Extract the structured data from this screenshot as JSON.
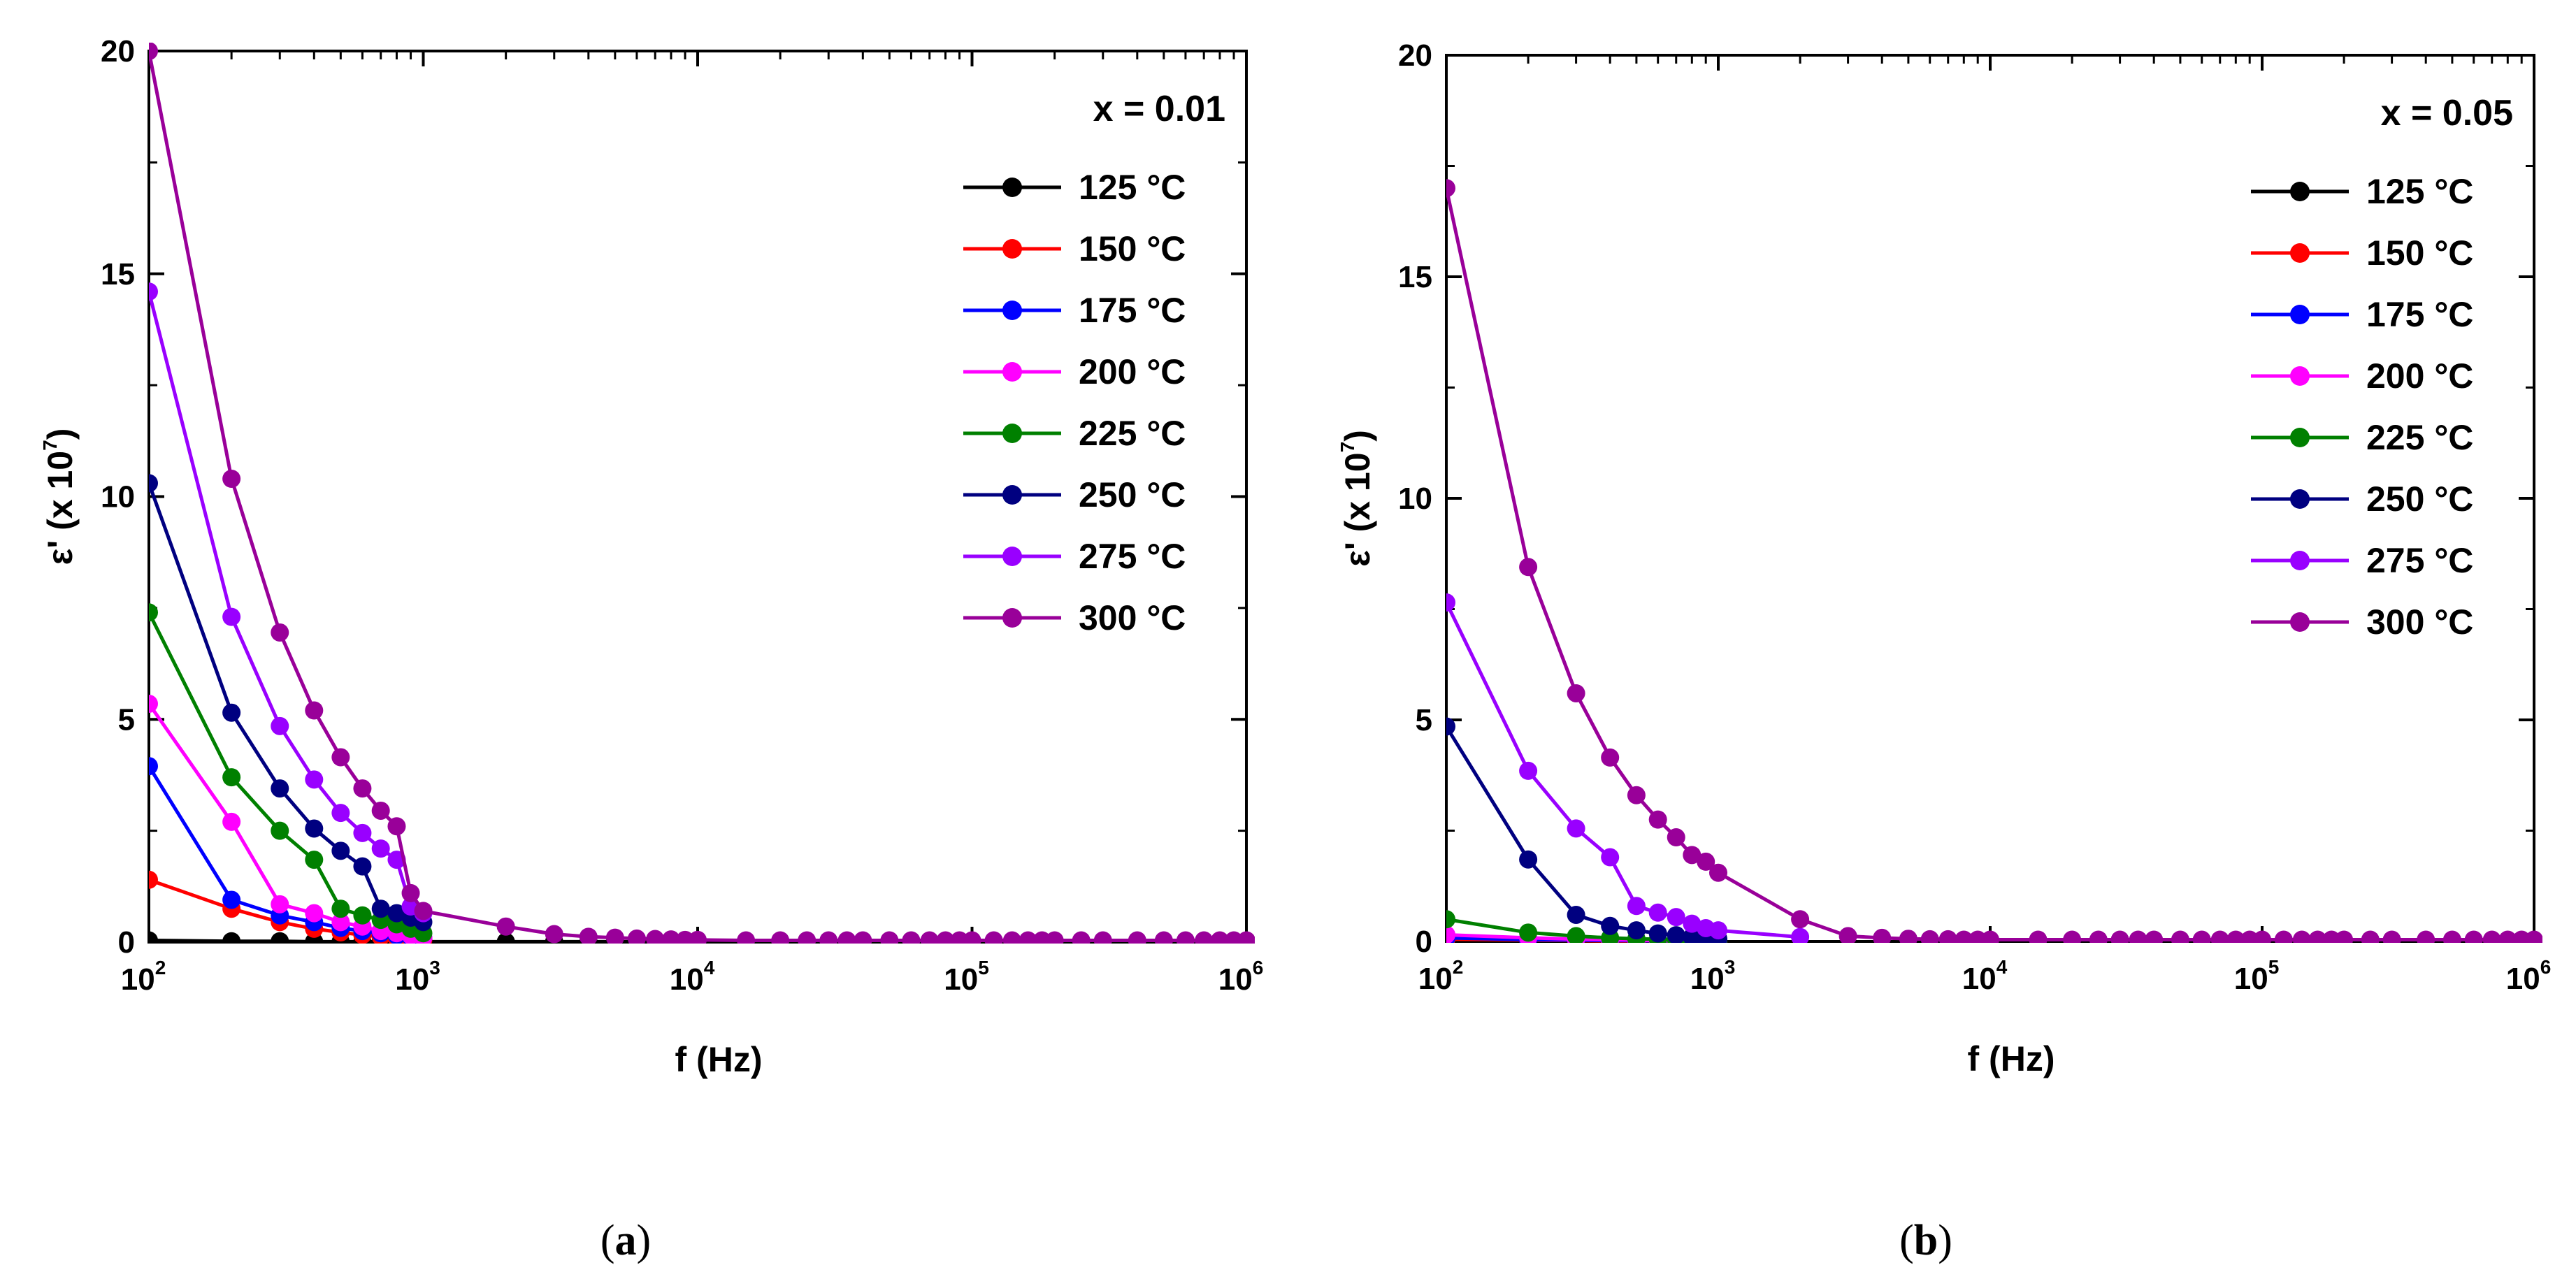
{
  "chart_data": [
    {
      "type": "line",
      "panel_label": "a",
      "annotation": "x = 0.01",
      "xlabel": "f (Hz)",
      "ylabel": "ε' (x 10",
      "ylabel_exp": "7",
      "ylabel_close": ")",
      "xscale": "log",
      "xlim": [
        100,
        1000000
      ],
      "ylim": [
        0,
        20
      ],
      "yticks": [
        0,
        5,
        10,
        15,
        20
      ],
      "ytick_labels": [
        "0",
        "5",
        "10",
        "15",
        "20"
      ],
      "xticks": [
        100,
        1000,
        10000,
        100000,
        1000000
      ],
      "xtick_base": "10",
      "xtick_exps": [
        "2",
        "3",
        "4",
        "5",
        "6"
      ],
      "legend_position": "top-right",
      "series": [
        {
          "name": "125 °C",
          "color": "#000000",
          "x": [
            100,
            200,
            300,
            400,
            500,
            600,
            700,
            800,
            900,
            1000,
            2000,
            3000,
            4000,
            5000,
            6000,
            7000,
            8000,
            9000,
            10000,
            15000,
            20000,
            25000,
            30000,
            35000,
            40000,
            50000,
            60000,
            70000,
            80000,
            90000,
            100000,
            120000,
            140000,
            160000,
            180000,
            200000,
            250000,
            300000,
            400000,
            500000,
            600000,
            700000,
            800000,
            900000,
            1000000
          ],
          "y": [
            0.04,
            0.02,
            0.02,
            0.01,
            0.01,
            0.01,
            0.01,
            0.01,
            0.01,
            0.01,
            0.01,
            0.01,
            0.01,
            0.01,
            0.01,
            0.01,
            0.01,
            0.01,
            0.01,
            0.01,
            0.01,
            0.01,
            0.01,
            0.01,
            0.01,
            0.01,
            0.01,
            0.01,
            0.01,
            0.01,
            0.01,
            0.01,
            0.01,
            0.01,
            0.01,
            0.01,
            0.01,
            0.01,
            0.01,
            0.01,
            0.01,
            0.01,
            0.01,
            0.01,
            0.01
          ]
        },
        {
          "name": "150 °C",
          "color": "#ff0000",
          "x": [
            100,
            200,
            300,
            400,
            500,
            600,
            700,
            800,
            900,
            1000
          ],
          "y": [
            1.4,
            0.75,
            0.45,
            0.3,
            0.22,
            0.16,
            0.12,
            0.09,
            0.07,
            0.05
          ]
        },
        {
          "name": "175 °C",
          "color": "#0000ff",
          "x": [
            100,
            200,
            300,
            400,
            500,
            600,
            700,
            800,
            900,
            1000
          ],
          "y": [
            3.95,
            0.95,
            0.6,
            0.45,
            0.32,
            0.25,
            0.2,
            0.15,
            0.12,
            0.1
          ]
        },
        {
          "name": "200 °C",
          "color": "#ff00ff",
          "x": [
            100,
            200,
            300,
            400,
            500,
            600,
            700,
            800,
            900,
            1000
          ],
          "y": [
            5.35,
            2.7,
            0.85,
            0.65,
            0.45,
            0.35,
            0.25,
            0.2,
            0.15,
            0.1
          ]
        },
        {
          "name": "225 °C",
          "color": "#008000",
          "x": [
            100,
            200,
            300,
            400,
            500,
            600,
            700,
            800,
            900,
            1000
          ],
          "y": [
            7.4,
            3.7,
            2.5,
            1.85,
            0.75,
            0.6,
            0.5,
            0.4,
            0.3,
            0.2
          ]
        },
        {
          "name": "250 °C",
          "color": "#000080",
          "x": [
            100,
            200,
            300,
            400,
            500,
            600,
            700,
            800,
            900,
            1000
          ],
          "y": [
            10.3,
            5.15,
            3.45,
            2.55,
            2.05,
            1.7,
            0.75,
            0.65,
            0.55,
            0.45
          ]
        },
        {
          "name": "275 °C",
          "color": "#9900ff",
          "x": [
            100,
            200,
            300,
            400,
            500,
            600,
            700,
            800,
            900,
            1000
          ],
          "y": [
            14.6,
            7.3,
            4.85,
            3.65,
            2.9,
            2.45,
            2.1,
            1.85,
            0.8,
            0.65
          ]
        },
        {
          "name": "300 °C",
          "color": "#990099",
          "x": [
            100,
            200,
            300,
            400,
            500,
            600,
            700,
            800,
            900,
            1000,
            2000,
            3000,
            4000,
            5000,
            6000,
            7000,
            8000,
            9000,
            10000,
            15000,
            20000,
            25000,
            30000,
            35000,
            40000,
            50000,
            60000,
            70000,
            80000,
            90000,
            100000,
            120000,
            140000,
            160000,
            180000,
            200000,
            250000,
            300000,
            400000,
            500000,
            600000,
            700000,
            800000,
            900000,
            1000000
          ],
          "y": [
            20.0,
            10.4,
            6.95,
            5.2,
            4.15,
            3.45,
            2.95,
            2.6,
            1.1,
            0.7,
            0.35,
            0.18,
            0.12,
            0.1,
            0.08,
            0.07,
            0.06,
            0.05,
            0.05,
            0.04,
            0.04,
            0.04,
            0.04,
            0.04,
            0.04,
            0.04,
            0.04,
            0.04,
            0.04,
            0.04,
            0.04,
            0.04,
            0.04,
            0.04,
            0.04,
            0.04,
            0.04,
            0.04,
            0.04,
            0.04,
            0.04,
            0.04,
            0.04,
            0.04,
            0.04
          ]
        }
      ]
    },
    {
      "type": "line",
      "panel_label": "b",
      "annotation": "x = 0.05",
      "xlabel": "f (Hz)",
      "ylabel": "ε' (x 10",
      "ylabel_exp": "7",
      "ylabel_close": ")",
      "xscale": "log",
      "xlim": [
        100,
        1000000
      ],
      "ylim": [
        0,
        20
      ],
      "yticks": [
        0,
        5,
        10,
        15,
        20
      ],
      "ytick_labels": [
        "0",
        "5",
        "10",
        "15",
        "20"
      ],
      "xticks": [
        100,
        1000,
        10000,
        100000,
        1000000
      ],
      "xtick_base": "10",
      "xtick_exps": [
        "2",
        "3",
        "4",
        "5",
        "6"
      ],
      "legend_position": "top-right",
      "series": [
        {
          "name": "125 °C",
          "color": "#000000",
          "x": [
            100,
            200,
            300,
            400,
            500,
            600,
            700,
            800,
            900,
            1000
          ],
          "y": [
            0.02,
            0.01,
            0.01,
            0.01,
            0.01,
            0.01,
            0.01,
            0.01,
            0.01,
            0.01
          ]
        },
        {
          "name": "150 °C",
          "color": "#ff0000",
          "x": [
            100,
            200,
            300,
            400,
            500,
            600,
            700,
            800,
            900,
            1000
          ],
          "y": [
            0.05,
            0.03,
            0.02,
            0.01,
            0.01,
            0.01,
            0.01,
            0.01,
            0.01,
            0.01
          ]
        },
        {
          "name": "175 °C",
          "color": "#0000ff",
          "x": [
            100,
            200,
            300,
            400,
            500,
            600,
            700,
            800,
            900,
            1000
          ],
          "y": [
            0.08,
            0.04,
            0.03,
            0.02,
            0.02,
            0.01,
            0.01,
            0.01,
            0.01,
            0.01
          ]
        },
        {
          "name": "200 °C",
          "color": "#ff00ff",
          "x": [
            100,
            200,
            300,
            400,
            500,
            600,
            700,
            800,
            900,
            1000
          ],
          "y": [
            0.15,
            0.08,
            0.05,
            0.04,
            0.03,
            0.02,
            0.02,
            0.02,
            0.01,
            0.01
          ]
        },
        {
          "name": "225 °C",
          "color": "#008000",
          "x": [
            100,
            200,
            300,
            400,
            500,
            600,
            700,
            800,
            900,
            1000
          ],
          "y": [
            0.5,
            0.2,
            0.12,
            0.08,
            0.06,
            0.05,
            0.04,
            0.03,
            0.03,
            0.02
          ]
        },
        {
          "name": "250 °C",
          "color": "#000080",
          "x": [
            100,
            200,
            300,
            400,
            500,
            600,
            700,
            800,
            900,
            1000
          ],
          "y": [
            4.85,
            1.85,
            0.6,
            0.35,
            0.25,
            0.18,
            0.14,
            0.1,
            0.08,
            0.06
          ]
        },
        {
          "name": "275 °C",
          "color": "#9900ff",
          "x": [
            100,
            200,
            300,
            400,
            500,
            600,
            700,
            800,
            900,
            1000,
            2000
          ],
          "y": [
            7.65,
            3.85,
            2.55,
            1.9,
            0.8,
            0.65,
            0.55,
            0.4,
            0.3,
            0.25,
            0.1
          ]
        },
        {
          "name": "300 °C",
          "color": "#990099",
          "x": [
            100,
            200,
            300,
            400,
            500,
            600,
            700,
            800,
            900,
            1000,
            2000,
            3000,
            4000,
            5000,
            6000,
            7000,
            8000,
            9000,
            10000,
            15000,
            20000,
            25000,
            30000,
            35000,
            40000,
            50000,
            60000,
            70000,
            80000,
            90000,
            100000,
            120000,
            140000,
            160000,
            180000,
            200000,
            250000,
            300000,
            400000,
            500000,
            600000,
            700000,
            800000,
            900000,
            1000000
          ],
          "y": [
            17.0,
            8.45,
            5.6,
            4.15,
            3.3,
            2.75,
            2.35,
            1.95,
            1.8,
            1.55,
            0.5,
            0.12,
            0.08,
            0.06,
            0.05,
            0.05,
            0.04,
            0.04,
            0.04,
            0.04,
            0.04,
            0.04,
            0.04,
            0.04,
            0.04,
            0.04,
            0.04,
            0.04,
            0.04,
            0.04,
            0.04,
            0.04,
            0.04,
            0.04,
            0.04,
            0.04,
            0.04,
            0.04,
            0.04,
            0.04,
            0.04,
            0.04,
            0.04,
            0.04,
            0.04
          ]
        }
      ]
    }
  ]
}
